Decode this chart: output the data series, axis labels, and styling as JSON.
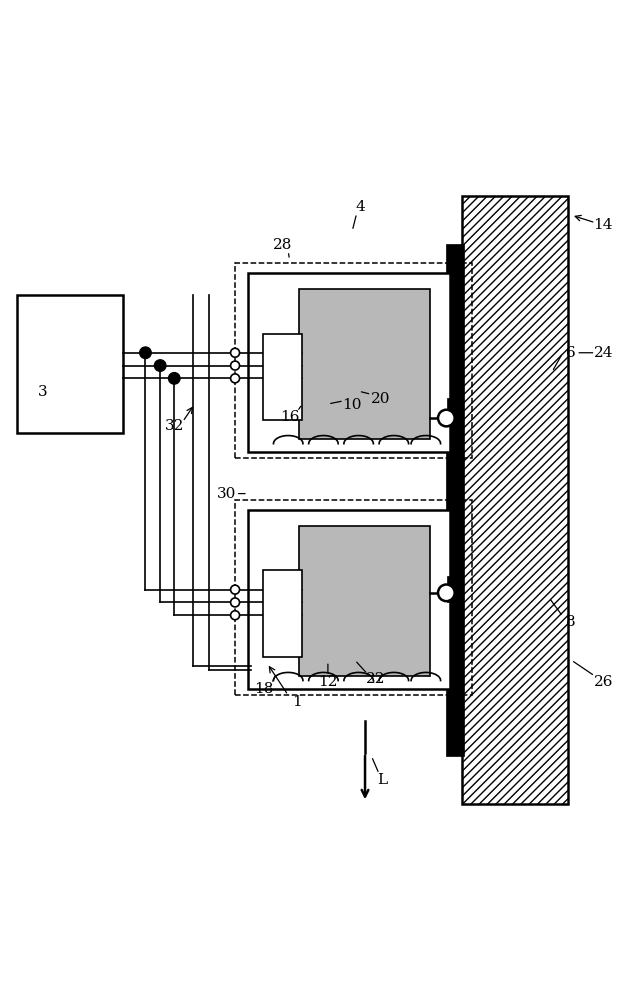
{
  "bg_color": "#ffffff",
  "line_color": "#000000",
  "gray_fill": "#b8b8b8",
  "fig_width": 6.43,
  "fig_height": 10.0
}
